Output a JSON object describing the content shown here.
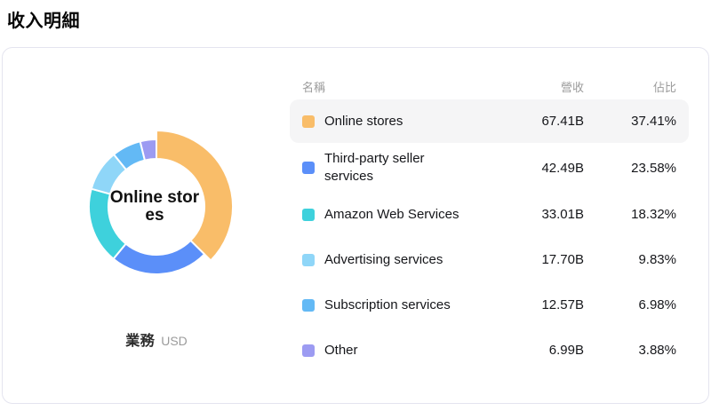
{
  "page": {
    "title": "收入明細"
  },
  "card": {
    "center_label": "Online stores",
    "axis_label": "業務",
    "axis_unit": "USD"
  },
  "table": {
    "headers": {
      "name": "名稱",
      "revenue": "營收",
      "share": "佔比"
    },
    "rows": [
      {
        "name": "Online stores",
        "revenue": "67.41B",
        "share": "37.41%",
        "highlighted": true
      },
      {
        "name": "Third-party seller services",
        "revenue": "42.49B",
        "share": "23.58%",
        "highlighted": false
      },
      {
        "name": "Amazon Web Services",
        "revenue": "33.01B",
        "share": "18.32%",
        "highlighted": false
      },
      {
        "name": "Advertising services",
        "revenue": "17.70B",
        "share": "9.83%",
        "highlighted": false
      },
      {
        "name": "Subscription services",
        "revenue": "12.57B",
        "share": "6.98%",
        "highlighted": false
      },
      {
        "name": "Other",
        "revenue": "6.99B",
        "share": "3.88%",
        "highlighted": false
      }
    ]
  },
  "chart_data": {
    "type": "pie",
    "donut": true,
    "title": "收入明細",
    "unit": "USD",
    "dimension_label": "業務",
    "highlighted_segment": "Online stores",
    "segments": [
      {
        "label": "Online stores",
        "value_billion": 67.41,
        "percent": 37.41,
        "color": "#F9BD69"
      },
      {
        "label": "Third-party seller services",
        "value_billion": 42.49,
        "percent": 23.58,
        "color": "#5B8FF9"
      },
      {
        "label": "Amazon Web Services",
        "value_billion": 33.01,
        "percent": 18.32,
        "color": "#3ED1DC"
      },
      {
        "label": "Advertising services",
        "value_billion": 17.7,
        "percent": 9.83,
        "color": "#8FD6F8"
      },
      {
        "label": "Subscription services",
        "value_billion": 12.57,
        "percent": 6.98,
        "color": "#63B9F5"
      },
      {
        "label": "Other",
        "value_billion": 6.99,
        "percent": 3.88,
        "color": "#9C9BF2"
      }
    ],
    "geometry": {
      "inner_radius": 54,
      "outer_radius": 76,
      "highlighted_outer_radius": 86
    }
  }
}
